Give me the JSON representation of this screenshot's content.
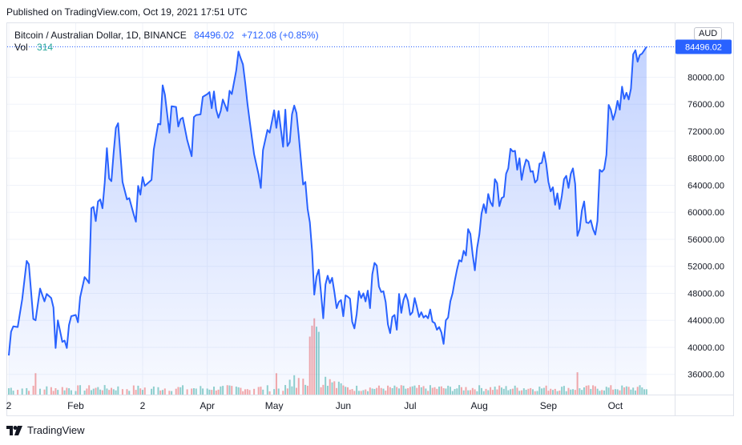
{
  "published": "Published on TradingView.com, Oct 19, 2021 17:51 UTC",
  "legend": {
    "symbol": "Bitcoin / Australian Dollar, 1D, BINANCE",
    "price": "84496.02",
    "change": "+712.08 (+0.85%)",
    "vol_label": "Vol",
    "vol_value": "314"
  },
  "currency": "AUD",
  "footer": {
    "brand": "TradingView"
  },
  "colors": {
    "line": "#2962ff",
    "fill": "#2962ff",
    "grid": "#f0f3fa",
    "vol_up": "#26a69a",
    "vol_down": "#ef5350"
  },
  "chart_data": {
    "type": "area",
    "ylim": [
      33000,
      88000
    ],
    "yticks": [
      36000,
      40000,
      44000,
      48000,
      52000,
      56000,
      60000,
      64000,
      68000,
      72000,
      76000,
      80000
    ],
    "ytick_labels": [
      "36000.00",
      "40000.00",
      "44000.00",
      "48000.00",
      "52000.00",
      "56000.00",
      "60000.00",
      "64000.00",
      "68000.00",
      "72000.00",
      "76000.00",
      "80000.00"
    ],
    "last_value_label": "84496.02",
    "xticks": [
      {
        "label": "2",
        "day": 0
      },
      {
        "label": "Feb",
        "day": 30
      },
      {
        "label": "2",
        "day": 60
      },
      {
        "label": "Apr",
        "day": 89
      },
      {
        "label": "May",
        "day": 119
      },
      {
        "label": "Jun",
        "day": 150
      },
      {
        "label": "Jul",
        "day": 180
      },
      {
        "label": "Aug",
        "day": 211
      },
      {
        "label": "Sep",
        "day": 242
      },
      {
        "label": "Oct",
        "day": 272
      }
    ],
    "x_last_day": 290,
    "series": [
      {
        "values": [
          [
            0,
            38800
          ],
          [
            1,
            42300
          ],
          [
            2,
            43100
          ],
          [
            4,
            43000
          ],
          [
            6,
            47100
          ],
          [
            8,
            52800
          ],
          [
            9,
            52300
          ],
          [
            11,
            44200
          ],
          [
            12,
            44000
          ],
          [
            14,
            48700
          ],
          [
            16,
            46800
          ],
          [
            17,
            47900
          ],
          [
            19,
            47300
          ],
          [
            20,
            45900
          ],
          [
            21,
            39900
          ],
          [
            22,
            44000
          ],
          [
            24,
            40800
          ],
          [
            25,
            41000
          ],
          [
            26,
            39900
          ],
          [
            27,
            43300
          ],
          [
            28,
            44600
          ],
          [
            30,
            44800
          ],
          [
            31,
            43700
          ],
          [
            32,
            47400
          ],
          [
            34,
            50400
          ],
          [
            35,
            50000
          ],
          [
            36,
            49500
          ],
          [
            37,
            60600
          ],
          [
            38,
            60800
          ],
          [
            39,
            58700
          ],
          [
            40,
            61600
          ],
          [
            41,
            61900
          ],
          [
            42,
            60600
          ],
          [
            43,
            64400
          ],
          [
            44,
            69500
          ],
          [
            45,
            65000
          ],
          [
            46,
            64600
          ],
          [
            47,
            68800
          ],
          [
            48,
            72500
          ],
          [
            49,
            73200
          ],
          [
            51,
            64500
          ],
          [
            53,
            61900
          ],
          [
            54,
            62100
          ],
          [
            56,
            59700
          ],
          [
            57,
            58600
          ],
          [
            58,
            63900
          ],
          [
            59,
            62600
          ],
          [
            60,
            65200
          ],
          [
            61,
            63900
          ],
          [
            64,
            64800
          ],
          [
            65,
            69300
          ],
          [
            67,
            73100
          ],
          [
            68,
            73000
          ],
          [
            69,
            78800
          ],
          [
            70,
            77400
          ],
          [
            72,
            71800
          ],
          [
            73,
            75700
          ],
          [
            75,
            75600
          ],
          [
            76,
            72700
          ],
          [
            77,
            73800
          ],
          [
            78,
            74000
          ],
          [
            80,
            70700
          ],
          [
            82,
            68300
          ],
          [
            83,
            74100
          ],
          [
            84,
            74400
          ],
          [
            86,
            74500
          ],
          [
            87,
            77100
          ],
          [
            89,
            77500
          ],
          [
            90,
            77800
          ],
          [
            91,
            75400
          ],
          [
            92,
            77900
          ],
          [
            93,
            75200
          ],
          [
            94,
            74000
          ],
          [
            95,
            75000
          ],
          [
            96,
            76700
          ],
          [
            98,
            75000
          ],
          [
            99,
            78000
          ],
          [
            100,
            77500
          ],
          [
            102,
            81000
          ],
          [
            103,
            83800
          ],
          [
            104,
            82800
          ],
          [
            105,
            81900
          ],
          [
            106,
            79200
          ],
          [
            107,
            76100
          ],
          [
            108,
            73600
          ],
          [
            110,
            68600
          ],
          [
            112,
            65600
          ],
          [
            113,
            63600
          ],
          [
            114,
            69200
          ],
          [
            116,
            72200
          ],
          [
            117,
            71800
          ],
          [
            119,
            75100
          ],
          [
            120,
            72500
          ],
          [
            121,
            75000
          ],
          [
            123,
            69700
          ],
          [
            124,
            75200
          ],
          [
            125,
            69800
          ],
          [
            126,
            70400
          ],
          [
            127,
            74500
          ],
          [
            128,
            75800
          ],
          [
            129,
            74700
          ],
          [
            130,
            71400
          ],
          [
            132,
            64100
          ],
          [
            133,
            64500
          ],
          [
            134,
            60500
          ],
          [
            135,
            58500
          ],
          [
            136,
            54200
          ],
          [
            137,
            47800
          ],
          [
            138,
            50500
          ],
          [
            139,
            51500
          ],
          [
            140,
            48100
          ],
          [
            141,
            44300
          ],
          [
            142,
            49300
          ],
          [
            143,
            50600
          ],
          [
            144,
            49500
          ],
          [
            145,
            50300
          ],
          [
            146,
            48200
          ],
          [
            147,
            45800
          ],
          [
            148,
            46700
          ],
          [
            149,
            47000
          ],
          [
            150,
            44600
          ],
          [
            151,
            47700
          ],
          [
            152,
            47500
          ],
          [
            153,
            47200
          ],
          [
            154,
            43800
          ],
          [
            155,
            42800
          ],
          [
            156,
            44900
          ],
          [
            157,
            48300
          ],
          [
            158,
            47300
          ],
          [
            159,
            48000
          ],
          [
            160,
            46800
          ],
          [
            161,
            48400
          ],
          [
            162,
            45800
          ],
          [
            163,
            50800
          ],
          [
            164,
            52500
          ],
          [
            165,
            52100
          ],
          [
            166,
            49000
          ],
          [
            167,
            48200
          ],
          [
            168,
            48300
          ],
          [
            169,
            46700
          ],
          [
            170,
            43400
          ],
          [
            171,
            42100
          ],
          [
            172,
            44500
          ],
          [
            173,
            44800
          ],
          [
            174,
            42600
          ],
          [
            175,
            47900
          ],
          [
            176,
            45100
          ],
          [
            177,
            47000
          ],
          [
            178,
            47900
          ],
          [
            179,
            46900
          ],
          [
            180,
            44800
          ],
          [
            181,
            45200
          ],
          [
            182,
            47300
          ],
          [
            183,
            46000
          ],
          [
            184,
            44500
          ],
          [
            185,
            45200
          ],
          [
            186,
            44400
          ],
          [
            187,
            44700
          ],
          [
            188,
            44300
          ],
          [
            189,
            45600
          ],
          [
            190,
            43800
          ],
          [
            191,
            43600
          ],
          [
            192,
            42600
          ],
          [
            193,
            43000
          ],
          [
            194,
            42200
          ],
          [
            195,
            40500
          ],
          [
            196,
            44000
          ],
          [
            197,
            44400
          ],
          [
            198,
            46800
          ],
          [
            199,
            48000
          ],
          [
            200,
            49900
          ],
          [
            201,
            51500
          ],
          [
            202,
            52900
          ],
          [
            203,
            52700
          ],
          [
            204,
            54300
          ],
          [
            205,
            53600
          ],
          [
            206,
            57500
          ],
          [
            207,
            56800
          ],
          [
            208,
            53800
          ],
          [
            209,
            51400
          ],
          [
            210,
            54700
          ],
          [
            211,
            56700
          ],
          [
            212,
            59800
          ],
          [
            213,
            61200
          ],
          [
            214,
            59900
          ],
          [
            215,
            62700
          ],
          [
            216,
            61500
          ],
          [
            217,
            60900
          ],
          [
            218,
            64900
          ],
          [
            219,
            64300
          ],
          [
            220,
            60900
          ],
          [
            221,
            62100
          ],
          [
            222,
            62300
          ],
          [
            223,
            65700
          ],
          [
            224,
            66500
          ],
          [
            225,
            69400
          ],
          [
            226,
            69000
          ],
          [
            227,
            69100
          ],
          [
            228,
            66300
          ],
          [
            229,
            68000
          ],
          [
            230,
            64800
          ],
          [
            231,
            66600
          ],
          [
            232,
            67800
          ],
          [
            233,
            67500
          ],
          [
            234,
            66000
          ],
          [
            235,
            66100
          ],
          [
            236,
            64400
          ],
          [
            237,
            64800
          ],
          [
            238,
            67200
          ],
          [
            239,
            67300
          ],
          [
            240,
            68900
          ],
          [
            241,
            67200
          ],
          [
            242,
            64500
          ],
          [
            243,
            63100
          ],
          [
            244,
            63700
          ],
          [
            245,
            61100
          ],
          [
            246,
            62800
          ],
          [
            247,
            60500
          ],
          [
            248,
            62400
          ],
          [
            249,
            64900
          ],
          [
            250,
            65400
          ],
          [
            251,
            63600
          ],
          [
            252,
            65700
          ],
          [
            253,
            66500
          ],
          [
            254,
            64200
          ],
          [
            255,
            56500
          ],
          [
            256,
            57500
          ],
          [
            257,
            60300
          ],
          [
            258,
            61600
          ],
          [
            259,
            58500
          ],
          [
            260,
            58400
          ],
          [
            261,
            58800
          ],
          [
            262,
            57500
          ],
          [
            263,
            56700
          ],
          [
            264,
            58700
          ],
          [
            265,
            66300
          ],
          [
            266,
            66000
          ],
          [
            267,
            66400
          ],
          [
            268,
            68500
          ],
          [
            269,
            75900
          ],
          [
            270,
            75200
          ],
          [
            271,
            73700
          ],
          [
            272,
            74800
          ],
          [
            273,
            76500
          ],
          [
            274,
            75200
          ],
          [
            275,
            78600
          ],
          [
            276,
            76800
          ],
          [
            277,
            77700
          ],
          [
            278,
            76700
          ],
          [
            279,
            78300
          ],
          [
            280,
            83400
          ],
          [
            281,
            84000
          ],
          [
            282,
            82300
          ],
          [
            283,
            83300
          ],
          [
            284,
            83500
          ],
          [
            285,
            84000
          ],
          [
            286,
            84500
          ]
        ]
      }
    ]
  }
}
